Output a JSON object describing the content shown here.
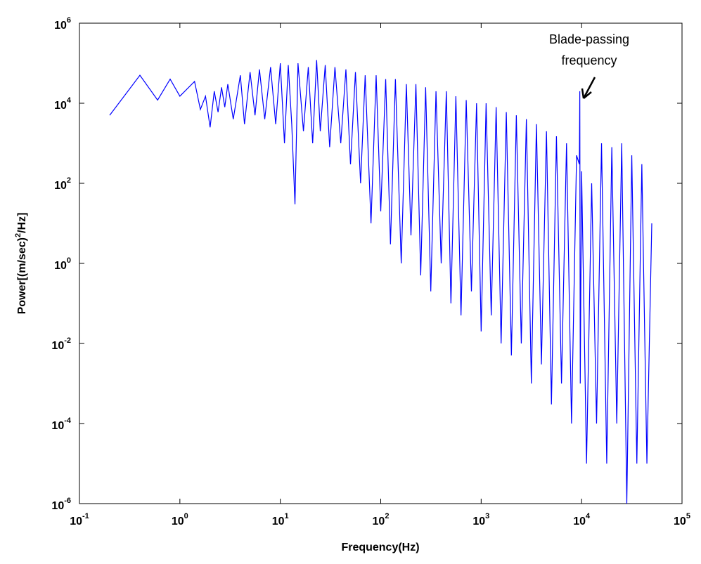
{
  "chart_data": {
    "type": "line",
    "xlabel": "Frequency(Hz)",
    "ylabel": {
      "before": "Power[(m/sec)",
      "sup": "2",
      "after": "/Hz]"
    },
    "annotation": [
      "Blade-passing",
      "frequency"
    ],
    "xscale": "log",
    "yscale": "log",
    "xlim": [
      0.1,
      100000
    ],
    "ylim": [
      1e-06,
      1000000
    ],
    "xticks": [
      {
        "value": 0.1,
        "label": "10",
        "exponent": "-1"
      },
      {
        "value": 1,
        "label": "10",
        "exponent": "0"
      },
      {
        "value": 10,
        "label": "10",
        "exponent": "1"
      },
      {
        "value": 100,
        "label": "10",
        "exponent": "2"
      },
      {
        "value": 1000,
        "label": "10",
        "exponent": "3"
      },
      {
        "value": 10000,
        "label": "10",
        "exponent": "4"
      },
      {
        "value": 100000,
        "label": "10",
        "exponent": "5"
      }
    ],
    "yticks": [
      {
        "value": 1e-06,
        "label": "10",
        "exponent": "-6"
      },
      {
        "value": 0.0001,
        "label": "10",
        "exponent": "-4"
      },
      {
        "value": 0.01,
        "label": "10",
        "exponent": "-2"
      },
      {
        "value": 1,
        "label": "10",
        "exponent": "0"
      },
      {
        "value": 100,
        "label": "10",
        "exponent": "2"
      },
      {
        "value": 10000,
        "label": "10",
        "exponent": "4"
      },
      {
        "value": 1000000,
        "label": "10",
        "exponent": "6"
      }
    ],
    "x": [
      0.2,
      0.4,
      0.6,
      0.8,
      1,
      1.4,
      1.6,
      1.8,
      2,
      2.2,
      2.4,
      2.6,
      2.8,
      3,
      3.4,
      4,
      4.4,
      5,
      5.6,
      6.2,
      7,
      8,
      9,
      10,
      11,
      12,
      13,
      14,
      15,
      17,
      19,
      21,
      23,
      25,
      28,
      31,
      35,
      40,
      45,
      50,
      56,
      63,
      70,
      80,
      90,
      100,
      112,
      125,
      140,
      160,
      180,
      200,
      224,
      250,
      280,
      315,
      355,
      400,
      450,
      500,
      560,
      630,
      710,
      800,
      900,
      1000,
      1120,
      1260,
      1410,
      1580,
      1780,
      2000,
      2240,
      2510,
      2820,
      3160,
      3550,
      3980,
      4470,
      5010,
      5620,
      6310,
      7080,
      7940,
      8910,
      9500,
      9600,
      9700,
      10000,
      11200,
      12600,
      14100,
      15800,
      17800,
      20000,
      22400,
      25100,
      28200,
      31600,
      35500,
      39800,
      44700,
      50000
    ],
    "series": [
      {
        "color": "#0000ff",
        "values": [
          5000.0,
          50000.0,
          12000.0,
          40000.0,
          15000.0,
          35000.0,
          7000.0,
          15000.0,
          2500.0,
          20000.0,
          6000.0,
          25000.0,
          8000.0,
          30000.0,
          4000.0,
          50000.0,
          3000.0,
          60000.0,
          5000.0,
          70000.0,
          4000.0,
          80000.0,
          3000.0,
          100000.0,
          1000.0,
          90000.0,
          3000.0,
          30,
          100000.0,
          2000.0,
          80000.0,
          1000.0,
          120000.0,
          2000.0,
          90000.0,
          800,
          80000.0,
          1000.0,
          70000.0,
          300,
          60000.0,
          100,
          50000.0,
          10,
          50000.0,
          20,
          40000.0,
          3,
          40000.0,
          1,
          30000.0,
          5,
          30000.0,
          0.5,
          25000.0,
          0.2,
          20000.0,
          1,
          20000.0,
          0.1,
          15000.0,
          0.05,
          12000.0,
          0.2,
          10000.0,
          0.02,
          10000.0,
          0.05,
          8000.0,
          0.01,
          6000.0,
          0.005,
          5000.0,
          0.01,
          4000.0,
          0.001,
          3000.0,
          0.003,
          2000.0,
          0.0003,
          1500.0,
          0.001,
          1000.0,
          0.0001,
          500,
          300,
          20000.0,
          0.001,
          200,
          1e-05,
          100,
          0.0001,
          1000.0,
          1e-05,
          800,
          0.0001,
          1000.0,
          1e-06,
          500,
          1e-05,
          300,
          1e-05,
          10
        ]
      }
    ]
  }
}
